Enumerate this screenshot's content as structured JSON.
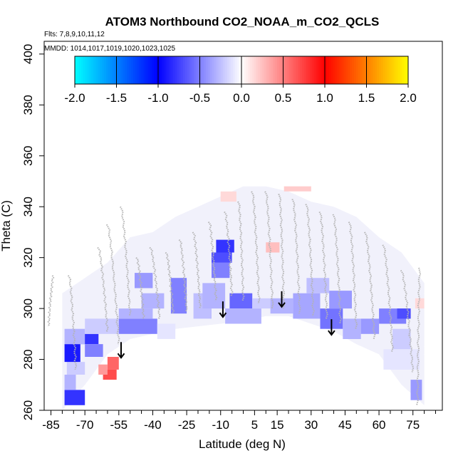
{
  "chart_data": {
    "type": "heatmap",
    "title": "ATOM3 Northbound CO2_NOAA_m_CO2_QCLS",
    "flights_label": "Flts: 7,8,9,10,11,12",
    "dates_label": "MMDD: 1014,1017,1019,1020,1023,1025",
    "xlabel": "Latitude (deg N)",
    "ylabel": "Theta (C)",
    "xlim": [
      -88,
      88
    ],
    "ylim": [
      260,
      405
    ],
    "x_ticks": [
      -85,
      -70,
      -55,
      -40,
      -25,
      -10,
      5,
      15,
      30,
      45,
      60,
      75
    ],
    "x_tick_labels": [
      "-85",
      "-70",
      "-55",
      "-40",
      "-25",
      "-10",
      "5",
      "15",
      "30",
      "45",
      "60",
      "75"
    ],
    "x_minor_ticks": [
      -80,
      -75,
      -65,
      -60,
      -50,
      -45,
      -35,
      -30,
      -20,
      -15,
      -5,
      0,
      10,
      20,
      25,
      35,
      40,
      50,
      55,
      65,
      70,
      80,
      85
    ],
    "y_ticks": [
      260,
      280,
      300,
      320,
      340,
      360,
      380,
      400
    ],
    "y_tick_labels": [
      "260",
      "280",
      "300",
      "320",
      "340",
      "360",
      "380",
      "400"
    ],
    "colorbar": {
      "min": -2.0,
      "max": 2.0,
      "ticks": [
        -2.0,
        -1.5,
        -1.0,
        -0.5,
        0.0,
        0.5,
        1.0,
        1.5,
        2.0
      ],
      "tick_labels": [
        "-2.0",
        "-1.5",
        "-1.0",
        "-0.5",
        "0.0",
        "0.5",
        "1.0",
        "1.5",
        "2.0"
      ],
      "colors": [
        "#00ffff",
        "#0000ff",
        "#ffffff",
        "#ff0000",
        "#ffff00"
      ]
    },
    "cells": [
      {
        "lat0": -79,
        "lat1": -70,
        "th0": 262,
        "th1": 268,
        "v": -0.8
      },
      {
        "lat0": -79,
        "lat1": -74,
        "th0": 268,
        "th1": 274,
        "v": -0.3
      },
      {
        "lat0": -78,
        "lat1": -70,
        "th0": 274,
        "th1": 279,
        "v": -0.2
      },
      {
        "lat0": -79,
        "lat1": -72,
        "th0": 279,
        "th1": 286,
        "v": -0.9
      },
      {
        "lat0": -74,
        "lat1": -64,
        "th0": 286,
        "th1": 290,
        "v": -0.8
      },
      {
        "lat0": -70,
        "lat1": -62,
        "th0": 281,
        "th1": 286,
        "v": -0.5
      },
      {
        "lat0": -79,
        "lat1": -70,
        "th0": 286,
        "th1": 292,
        "v": -0.3
      },
      {
        "lat0": -62,
        "lat1": -56,
        "th0": 272,
        "th1": 276,
        "v": 0.7
      },
      {
        "lat0": -60,
        "lat1": -55,
        "th0": 276,
        "th1": 281,
        "v": 0.6
      },
      {
        "lat0": -64,
        "lat1": -60,
        "th0": 274,
        "th1": 278,
        "v": 0.4
      },
      {
        "lat0": -70,
        "lat1": -55,
        "th0": 290,
        "th1": 296,
        "v": -0.2
      },
      {
        "lat0": -55,
        "lat1": -38,
        "th0": 290,
        "th1": 296,
        "v": -0.5
      },
      {
        "lat0": -55,
        "lat1": -40,
        "th0": 296,
        "th1": 300,
        "v": -0.3
      },
      {
        "lat0": -38,
        "lat1": -30,
        "th0": 288,
        "th1": 294,
        "v": -0.1
      },
      {
        "lat0": -45,
        "lat1": -35,
        "th0": 300,
        "th1": 306,
        "v": -0.3
      },
      {
        "lat0": -32,
        "lat1": -25,
        "th0": 298,
        "th1": 312,
        "v": -0.5
      },
      {
        "lat0": -48,
        "lat1": -40,
        "th0": 308,
        "th1": 314,
        "v": -0.4
      },
      {
        "lat0": -22,
        "lat1": -14,
        "th0": 296,
        "th1": 306,
        "v": -0.25
      },
      {
        "lat0": -14,
        "lat1": -6,
        "th0": 312,
        "th1": 318,
        "v": -0.5
      },
      {
        "lat0": -14,
        "lat1": -5,
        "th0": 318,
        "th1": 322,
        "v": -0.7
      },
      {
        "lat0": -12,
        "lat1": -4,
        "th0": 322,
        "th1": 327,
        "v": -0.8
      },
      {
        "lat0": -18,
        "lat1": -8,
        "th0": 300,
        "th1": 310,
        "v": -0.3
      },
      {
        "lat0": -6,
        "lat1": 4,
        "th0": 300,
        "th1": 306,
        "v": -0.6
      },
      {
        "lat0": -8,
        "lat1": 8,
        "th0": 294,
        "th1": 300,
        "v": -0.3
      },
      {
        "lat0": 4,
        "lat1": 12,
        "th0": 300,
        "th1": 304,
        "v": -0.2
      },
      {
        "lat0": 12,
        "lat1": 22,
        "th0": 298,
        "th1": 304,
        "v": -0.3
      },
      {
        "lat0": 22,
        "lat1": 34,
        "th0": 296,
        "th1": 306,
        "v": -0.35
      },
      {
        "lat0": 28,
        "lat1": 38,
        "th0": 306,
        "th1": 312,
        "v": -0.25
      },
      {
        "lat0": 34,
        "lat1": 44,
        "th0": 292,
        "th1": 300,
        "v": -0.55
      },
      {
        "lat0": 38,
        "lat1": 48,
        "th0": 300,
        "th1": 307,
        "v": -0.4
      },
      {
        "lat0": 44,
        "lat1": 52,
        "th0": 288,
        "th1": 296,
        "v": -0.3
      },
      {
        "lat0": 52,
        "lat1": 60,
        "th0": 290,
        "th1": 296,
        "v": -0.4
      },
      {
        "lat0": 60,
        "lat1": 72,
        "th0": 294,
        "th1": 300,
        "v": -0.5
      },
      {
        "lat0": 68,
        "lat1": 74,
        "th0": 296,
        "th1": 300,
        "v": -0.7
      },
      {
        "lat0": 66,
        "lat1": 74,
        "th0": 284,
        "th1": 292,
        "v": -0.2
      },
      {
        "lat0": 74,
        "lat1": 79,
        "th0": 264,
        "th1": 272,
        "v": -0.4
      },
      {
        "lat0": 62,
        "lat1": 78,
        "th0": 276,
        "th1": 284,
        "v": -0.1
      },
      {
        "lat0": -10,
        "lat1": -3,
        "th0": 342,
        "th1": 346,
        "v": 0.15
      },
      {
        "lat0": 18,
        "lat1": 30,
        "th0": 346,
        "th1": 348,
        "v": 0.2
      },
      {
        "lat0": 10,
        "lat1": 16,
        "th0": 322,
        "th1": 326,
        "v": 0.25
      },
      {
        "lat0": 76,
        "lat1": 80,
        "th0": 300,
        "th1": 304,
        "v": 0.15
      }
    ],
    "envelope_min_lat": [
      -80,
      -70,
      -60,
      -50,
      -40,
      -30,
      -20,
      -10,
      0,
      10,
      20,
      30,
      40,
      50,
      60,
      70,
      80
    ],
    "envelope_min_theta": [
      260,
      270,
      282,
      288,
      290,
      292,
      293,
      294,
      295,
      297,
      297,
      294,
      291,
      286,
      282,
      270,
      262
    ],
    "envelope_max_theta": [
      306,
      312,
      318,
      328,
      330,
      336,
      340,
      344,
      348,
      348,
      346,
      342,
      340,
      336,
      328,
      322,
      310
    ],
    "arrows": [
      {
        "lat": -54,
        "theta": 284
      },
      {
        "lat": -9,
        "theta": 300
      },
      {
        "lat": 17,
        "theta": 304
      },
      {
        "lat": 39,
        "theta": 293
      }
    ],
    "profiles": [
      {
        "lat_start": -84,
        "th_top": 313,
        "th_bot": 293,
        "dlat": -2
      },
      {
        "lat_start": -77,
        "th_top": 313,
        "th_bot": 276,
        "dlat": 3
      },
      {
        "lat_start": -64,
        "th_top": 324,
        "th_bot": 291,
        "dlat": 4
      },
      {
        "lat_start": -60,
        "th_top": 333,
        "th_bot": 286,
        "dlat": 5
      },
      {
        "lat_start": -54,
        "th_top": 340,
        "th_bot": 297,
        "dlat": 4
      },
      {
        "lat_start": -47,
        "th_top": 320,
        "th_bot": 296,
        "dlat": 3
      },
      {
        "lat_start": -41,
        "th_top": 324,
        "th_bot": 296,
        "dlat": 4
      },
      {
        "lat_start": -34,
        "th_top": 322,
        "th_bot": 298,
        "dlat": 3
      },
      {
        "lat_start": -28,
        "th_top": 327,
        "th_bot": 299,
        "dlat": 3
      },
      {
        "lat_start": -22,
        "th_top": 330,
        "th_bot": 300,
        "dlat": 3
      },
      {
        "lat_start": -15,
        "th_top": 334,
        "th_bot": 303,
        "dlat": 3
      },
      {
        "lat_start": -8,
        "th_top": 338,
        "th_bot": 305,
        "dlat": 3
      },
      {
        "lat_start": -2,
        "th_top": 342,
        "th_bot": 303,
        "dlat": 2
      },
      {
        "lat_start": 4,
        "th_top": 346,
        "th_bot": 302,
        "dlat": 3
      },
      {
        "lat_start": 10,
        "th_top": 346,
        "th_bot": 300,
        "dlat": 3
      },
      {
        "lat_start": 16,
        "th_top": 345,
        "th_bot": 300,
        "dlat": 2
      },
      {
        "lat_start": 22,
        "th_top": 343,
        "th_bot": 298,
        "dlat": 3
      },
      {
        "lat_start": 28,
        "th_top": 341,
        "th_bot": 297,
        "dlat": 3
      },
      {
        "lat_start": 34,
        "th_top": 338,
        "th_bot": 296,
        "dlat": 3
      },
      {
        "lat_start": 40,
        "th_top": 337,
        "th_bot": 294,
        "dlat": 3
      },
      {
        "lat_start": 47,
        "th_top": 334,
        "th_bot": 292,
        "dlat": 3
      },
      {
        "lat_start": 54,
        "th_top": 330,
        "th_bot": 288,
        "dlat": 4
      },
      {
        "lat_start": 62,
        "th_top": 325,
        "th_bot": 283,
        "dlat": 4
      },
      {
        "lat_start": 70,
        "th_top": 315,
        "th_bot": 275,
        "dlat": 5
      },
      {
        "lat_start": 78,
        "th_top": 316,
        "th_bot": 262,
        "dlat": -1
      }
    ]
  }
}
